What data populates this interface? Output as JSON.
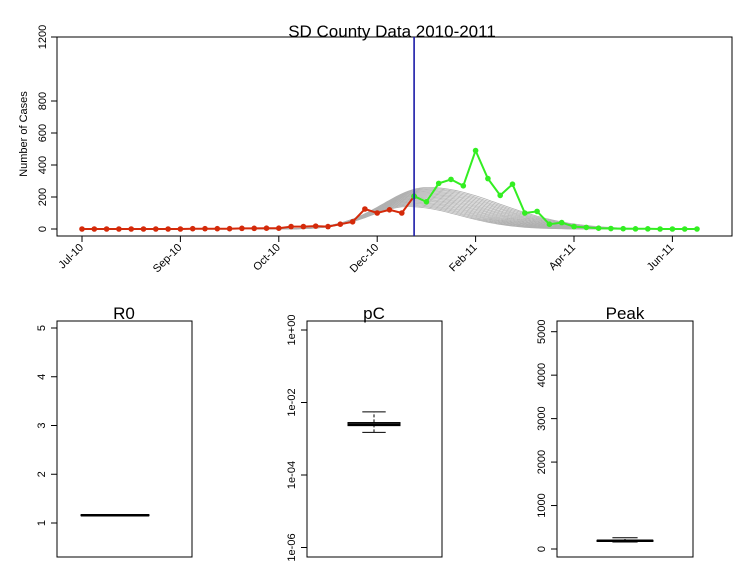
{
  "chart_data": [
    {
      "type": "line",
      "title": "SD County Data 2010-2011",
      "xlabel": "",
      "ylabel": "Number of Cases",
      "ylim": [
        0,
        1200
      ],
      "y_ticks": [
        "0",
        "200",
        "400",
        "600",
        "800",
        "1200"
      ],
      "x_tick_labels": [
        "Jul-10",
        "Sep-10",
        "Oct-10",
        "Dec-10",
        "Feb-11",
        "Apr-11",
        "Jun-11"
      ],
      "x_tick_weeks": [
        0,
        8,
        16,
        24,
        32,
        40,
        48
      ],
      "vertical_line_week": 27,
      "series": [
        {
          "color": "#d42a0a",
          "x_weeks": [
            0,
            1,
            2,
            3,
            4,
            5,
            6,
            7,
            8,
            9,
            10,
            11,
            12,
            13,
            14,
            15,
            16,
            17,
            18,
            19,
            20,
            21,
            22,
            23,
            24,
            25,
            26,
            27
          ],
          "values": [
            0,
            0,
            0,
            0,
            0,
            0,
            0,
            0,
            0,
            2,
            2,
            2,
            2,
            4,
            4,
            5,
            5,
            15,
            15,
            18,
            15,
            30,
            45,
            125,
            100,
            120,
            100,
            205
          ]
        },
        {
          "color": "#33ee22",
          "x_weeks": [
            27,
            28,
            29,
            30,
            31,
            32,
            33,
            34,
            35,
            36,
            37,
            38,
            39,
            40,
            41,
            42,
            43,
            44,
            45,
            46,
            47,
            48,
            49,
            50
          ],
          "values": [
            205,
            170,
            285,
            310,
            270,
            490,
            315,
            210,
            280,
            100,
            110,
            30,
            40,
            15,
            10,
            5,
            3,
            2,
            1,
            1,
            0,
            0,
            0,
            0
          ]
        },
        {
          "color": "#b0b0b0",
          "description_of_values": "ensemble of fitted epidemic curves",
          "peak_week": 27,
          "peak_range": [
            140,
            260
          ]
        }
      ]
    },
    {
      "type": "box",
      "title": "R0",
      "ylim": [
        0.3,
        5.2
      ],
      "y_ticks": [
        "1",
        "2",
        "3",
        "4",
        "5"
      ],
      "box": {
        "median": 1.16,
        "q1": 1.15,
        "q3": 1.17,
        "whisker_low": 1.15,
        "whisker_high": 1.17
      }
    },
    {
      "type": "box",
      "title": "pC",
      "scale": "log",
      "ylim": [
        1e-06,
        1
      ],
      "y_ticks": [
        "1e-06",
        "1e-04",
        "1e-02",
        "1e+00"
      ],
      "box": {
        "median": 0.0025,
        "q1": 0.0023,
        "q3": 0.0028,
        "whisker_low": 0.0015,
        "whisker_high": 0.0055
      }
    },
    {
      "type": "box",
      "title": "Peak",
      "ylim": [
        -100,
        5200
      ],
      "y_ticks": [
        "0",
        "1000",
        "2000",
        "3000",
        "4000",
        "5000"
      ],
      "box": {
        "median": 190,
        "q1": 175,
        "q3": 200,
        "whisker_low": 160,
        "whisker_high": 260
      }
    }
  ]
}
